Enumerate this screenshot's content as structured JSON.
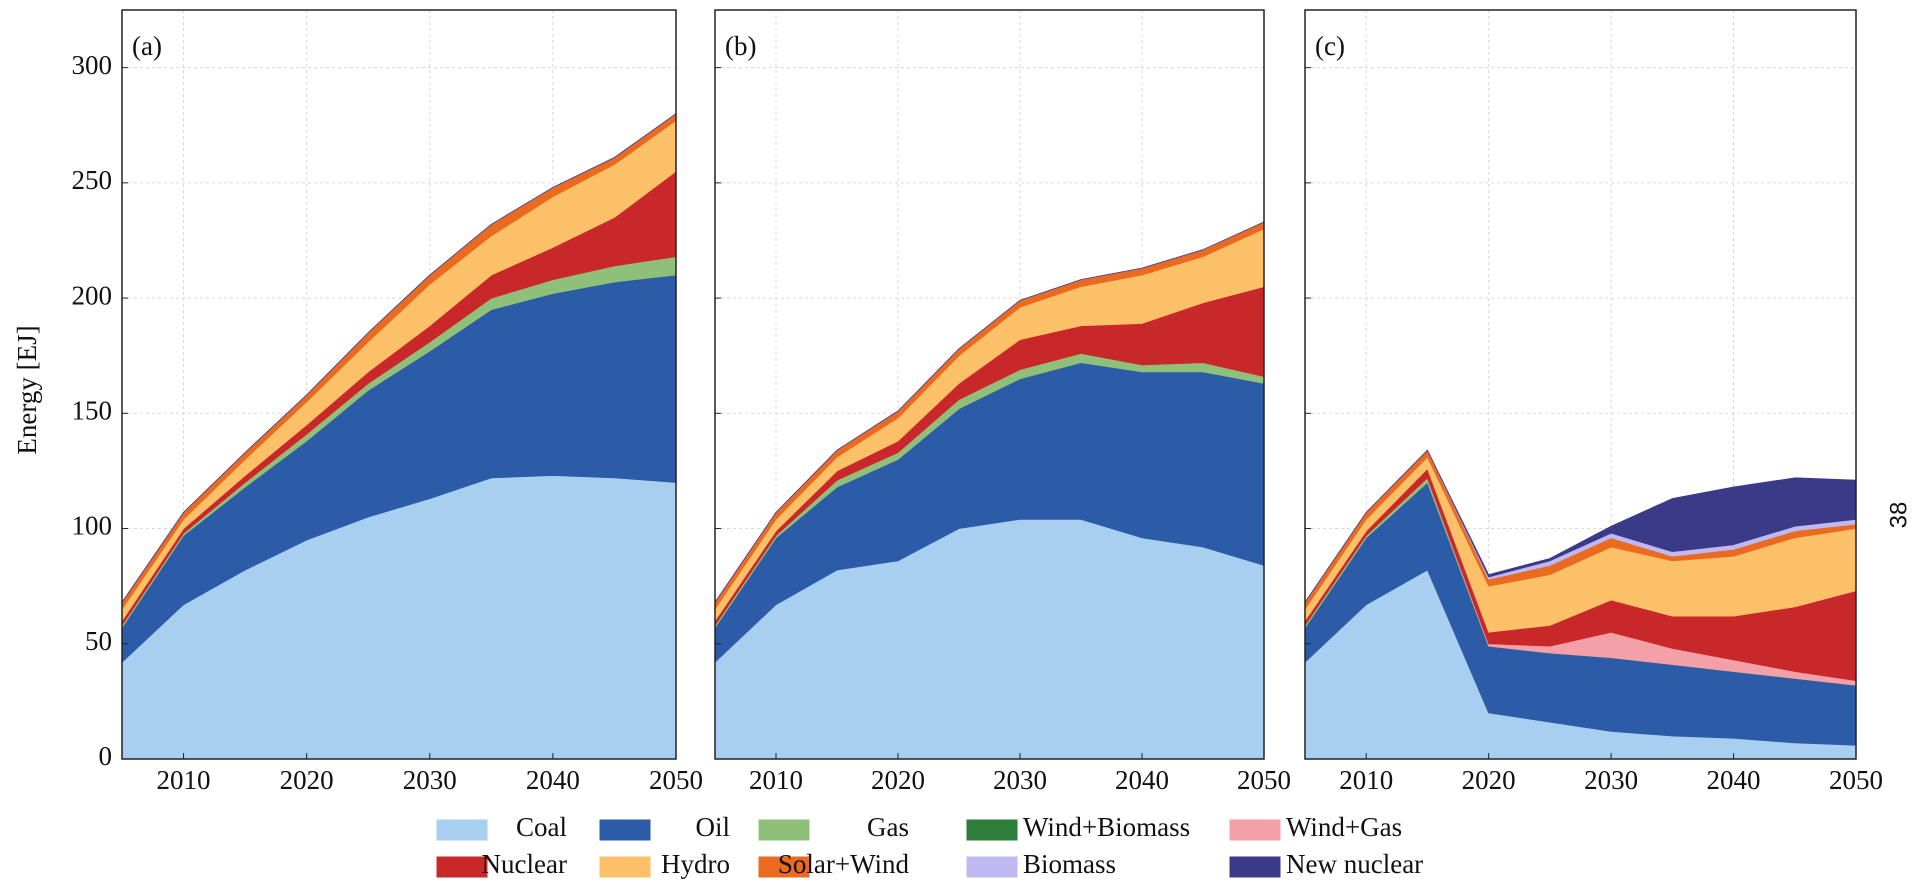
{
  "page_number": "38",
  "chart_data": [
    {
      "type": "area",
      "title": "(a)",
      "y_label": "Energy [EJ]",
      "x": [
        2005,
        2010,
        2015,
        2020,
        2025,
        2030,
        2035,
        2040,
        2045,
        2050
      ],
      "xlim": [
        2005,
        2050
      ],
      "xticks": [
        2010,
        2020,
        2030,
        2040,
        2050
      ],
      "ylim": [
        0,
        325
      ],
      "yticks": [
        0,
        50,
        100,
        150,
        200,
        250,
        300
      ],
      "grid": true,
      "series": [
        {
          "name": "Coal",
          "color": "#a8cef0",
          "values": [
            42,
            67,
            82,
            95,
            105,
            113,
            122,
            123,
            122,
            120
          ]
        },
        {
          "name": "Oil",
          "color": "#2c5ca8",
          "values": [
            15,
            30,
            36,
            43,
            55,
            64,
            73,
            79,
            85,
            90
          ]
        },
        {
          "name": "Gas",
          "color": "#8fc07a",
          "values": [
            1,
            1,
            2,
            3,
            3,
            4,
            5,
            6,
            7,
            8
          ]
        },
        {
          "name": "Wind+Biomass",
          "color": "#2e7d3a",
          "values": [
            0,
            0,
            0,
            0,
            0,
            0,
            0,
            0,
            0,
            0
          ]
        },
        {
          "name": "Wind+Gas",
          "color": "#f4a0a8",
          "values": [
            0,
            0,
            0,
            0,
            0,
            0,
            0,
            0,
            0,
            0
          ]
        },
        {
          "name": "Nuclear",
          "color": "#c8282a",
          "values": [
            2,
            2,
            3,
            4,
            5,
            7,
            10,
            14,
            21,
            37
          ]
        },
        {
          "name": "Hydro",
          "color": "#fcc068",
          "values": [
            5,
            4,
            7,
            10,
            13,
            18,
            17,
            22,
            23,
            22
          ]
        },
        {
          "name": "Solar+Wind",
          "color": "#ea6a20",
          "values": [
            3,
            3,
            3,
            3,
            4,
            4,
            5,
            4,
            3,
            3
          ]
        },
        {
          "name": "Biomass",
          "color": "#c0b8f0",
          "values": [
            0,
            0,
            0,
            0,
            0,
            0,
            0,
            0,
            0,
            0
          ]
        },
        {
          "name": "New nuclear",
          "color": "#3a3a88",
          "values": [
            0,
            0,
            0,
            0,
            0,
            0,
            0,
            0,
            0,
            0
          ]
        }
      ]
    },
    {
      "type": "area",
      "title": "(b)",
      "x": [
        2005,
        2010,
        2015,
        2020,
        2025,
        2030,
        2035,
        2040,
        2045,
        2050
      ],
      "xlim": [
        2005,
        2050
      ],
      "xticks": [
        2010,
        2020,
        2030,
        2040,
        2050
      ],
      "ylim": [
        0,
        325
      ],
      "yticks": [
        0,
        50,
        100,
        150,
        200,
        250,
        300
      ],
      "grid": true,
      "series": [
        {
          "name": "Coal",
          "color": "#a8cef0",
          "values": [
            42,
            67,
            82,
            86,
            100,
            104,
            104,
            96,
            92,
            84
          ]
        },
        {
          "name": "Oil",
          "color": "#2c5ca8",
          "values": [
            15,
            29,
            36,
            44,
            52,
            61,
            68,
            72,
            76,
            79
          ]
        },
        {
          "name": "Gas",
          "color": "#8fc07a",
          "values": [
            1,
            1,
            3,
            3,
            4,
            4,
            4,
            3,
            4,
            3
          ]
        },
        {
          "name": "Wind+Biomass",
          "color": "#2e7d3a",
          "values": [
            0,
            0,
            0,
            0,
            0,
            0,
            0,
            0,
            0,
            0
          ]
        },
        {
          "name": "Wind+Gas",
          "color": "#f4a0a8",
          "values": [
            0,
            0,
            0,
            0,
            0,
            0,
            0,
            0,
            0,
            0
          ]
        },
        {
          "name": "Nuclear",
          "color": "#c8282a",
          "values": [
            2,
            2,
            4,
            5,
            7,
            13,
            12,
            18,
            26,
            39
          ]
        },
        {
          "name": "Hydro",
          "color": "#fcc068",
          "values": [
            5,
            5,
            6,
            10,
            12,
            14,
            17,
            21,
            20,
            25
          ]
        },
        {
          "name": "Solar+Wind",
          "color": "#ea6a20",
          "values": [
            3,
            3,
            3,
            3,
            3,
            3,
            3,
            3,
            3,
            3
          ]
        },
        {
          "name": "Biomass",
          "color": "#c0b8f0",
          "values": [
            0,
            0,
            0,
            0,
            0,
            0,
            0,
            0,
            0,
            0
          ]
        },
        {
          "name": "New nuclear",
          "color": "#3a3a88",
          "values": [
            0,
            0,
            0,
            0,
            0,
            0,
            0,
            0,
            0,
            0
          ]
        }
      ]
    },
    {
      "type": "area",
      "title": "(c)",
      "x": [
        2005,
        2010,
        2015,
        2020,
        2025,
        2030,
        2035,
        2040,
        2045,
        2050
      ],
      "xlim": [
        2005,
        2050
      ],
      "xticks": [
        2010,
        2020,
        2030,
        2040,
        2050
      ],
      "ylim": [
        0,
        325
      ],
      "yticks": [
        0,
        50,
        100,
        150,
        200,
        250,
        300
      ],
      "grid": true,
      "series": [
        {
          "name": "Coal",
          "color": "#a8cef0",
          "values": [
            42,
            67,
            82,
            20,
            16,
            12,
            10,
            9,
            7,
            6
          ]
        },
        {
          "name": "Oil",
          "color": "#2c5ca8",
          "values": [
            15,
            29,
            38,
            29,
            30,
            32,
            31,
            29,
            28,
            26
          ]
        },
        {
          "name": "Gas",
          "color": "#8fc07a",
          "values": [
            1,
            1,
            2,
            0,
            0,
            0,
            0,
            0,
            0,
            0
          ]
        },
        {
          "name": "Wind+Biomass",
          "color": "#2e7d3a",
          "values": [
            0,
            0,
            0,
            0,
            0,
            0,
            0,
            0,
            0,
            0
          ]
        },
        {
          "name": "Wind+Gas",
          "color": "#f4a0a8",
          "values": [
            0,
            0,
            0,
            1,
            3,
            11,
            7,
            5,
            3,
            2
          ]
        },
        {
          "name": "Nuclear",
          "color": "#c8282a",
          "values": [
            2,
            2,
            4,
            5,
            9,
            14,
            14,
            19,
            28,
            39
          ]
        },
        {
          "name": "Hydro",
          "color": "#fcc068",
          "values": [
            5,
            5,
            5,
            20,
            22,
            23,
            24,
            26,
            30,
            27
          ]
        },
        {
          "name": "Solar+Wind",
          "color": "#ea6a20",
          "values": [
            3,
            3,
            3,
            3,
            4,
            4,
            2,
            3,
            3,
            2
          ]
        },
        {
          "name": "Biomass",
          "color": "#c0b8f0",
          "values": [
            0,
            0,
            0,
            1,
            2,
            2,
            2,
            2,
            2,
            2
          ]
        },
        {
          "name": "New nuclear",
          "color": "#3a3a88",
          "values": [
            0,
            0,
            0,
            1,
            1,
            3,
            23,
            25,
            21,
            17
          ]
        }
      ]
    }
  ]
}
